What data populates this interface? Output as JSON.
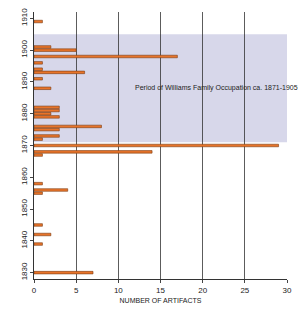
{
  "chart_data": {
    "type": "bar",
    "orientation": "horizontal",
    "categories": [
      1830,
      1839,
      1842,
      1845,
      1855,
      1856,
      1858,
      1867,
      1868,
      1870,
      1872,
      1873,
      1875,
      1876,
      1879,
      1880,
      1881,
      1882,
      1888,
      1891,
      1893,
      1894,
      1896,
      1898,
      1900,
      1901,
      1909
    ],
    "values": [
      7,
      1,
      2,
      1,
      1,
      4,
      1,
      1,
      14,
      29,
      1,
      3,
      3,
      8,
      3,
      2,
      3,
      3,
      2,
      1,
      6,
      1,
      1,
      17,
      5,
      2,
      1
    ],
    "color": "#e8742a",
    "xlabel": "NUMBER OF ARTIFACTS",
    "xlim": [
      0,
      30
    ],
    "xticks": [
      0,
      5,
      10,
      15,
      20,
      25,
      30
    ],
    "ylim": [
      1828,
      1912
    ],
    "yticks": [
      1830,
      1840,
      1850,
      1860,
      1870,
      1880,
      1890,
      1900,
      1910
    ],
    "grid": "x",
    "highlight": {
      "range": [
        1871,
        1905
      ],
      "color": "#c9c9e3",
      "label": "Period of Williams Family Occupation ca. 1871-1905"
    }
  }
}
